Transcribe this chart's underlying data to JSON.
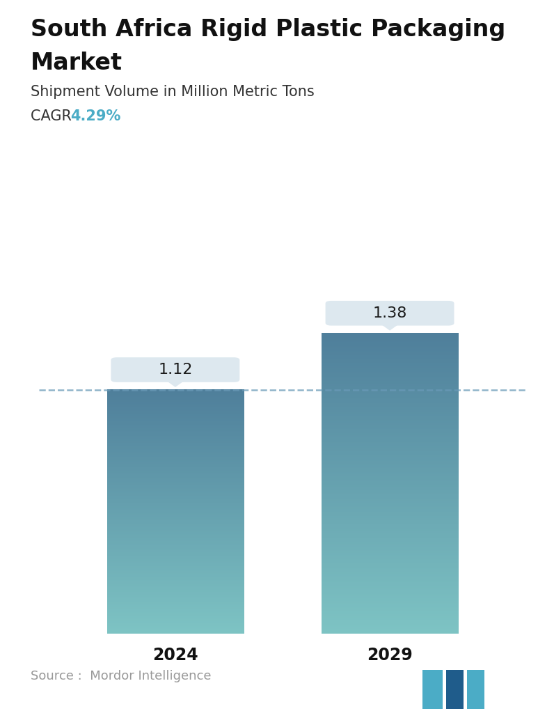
{
  "title_line1": "South Africa Rigid Plastic Packaging",
  "title_line2": "Market",
  "subtitle": "Shipment Volume in Million Metric Tons",
  "cagr_label": "CAGR ",
  "cagr_value": "4.29%",
  "cagr_color": "#4BACC6",
  "categories": [
    "2024",
    "2029"
  ],
  "values": [
    1.12,
    1.38
  ],
  "bar_color_top": "#4F7F9B",
  "bar_color_bottom": "#7EC4C4",
  "dashed_line_color": "#6A9AB8",
  "dashed_line_y": 1.12,
  "label_box_color": "#DDE8EF",
  "source_text": "Source :  Mordor Intelligence",
  "source_color": "#999999",
  "background_color": "#FFFFFF",
  "title_fontsize": 24,
  "subtitle_fontsize": 15,
  "cagr_fontsize": 15,
  "bar_label_fontsize": 16,
  "tick_fontsize": 17,
  "source_fontsize": 13,
  "ylim": [
    0,
    1.72
  ],
  "bar_width": 0.28
}
